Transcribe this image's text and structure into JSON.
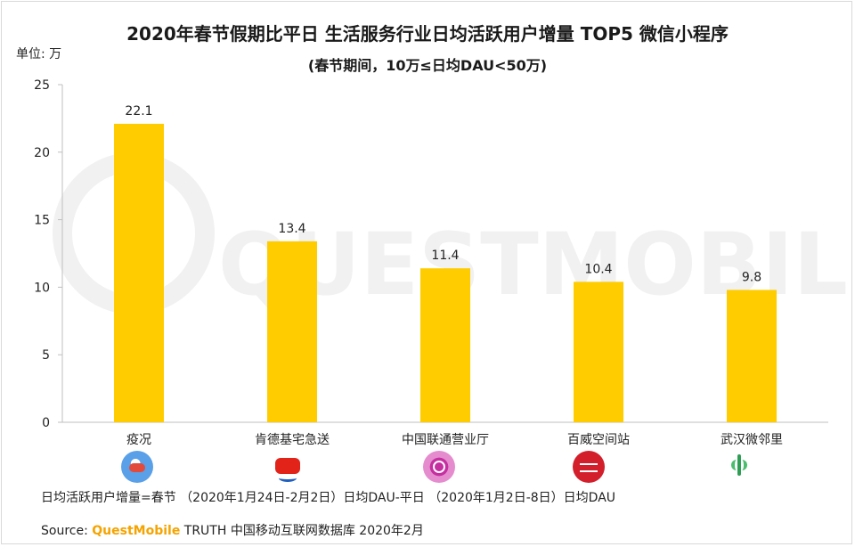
{
  "header": {
    "title": "2020年春节假期比平日 生活服务行业日均活跃用户增量 TOP5 微信小程序",
    "subtitle": "(春节期间，10万≤日均DAU<50万)",
    "unit": "单位: 万"
  },
  "chart_data": {
    "type": "bar",
    "title": "2020年春节假期比平日 生活服务行业日均活跃用户增量 TOP5 微信小程序",
    "subtitle": "(春节期间，10万≤日均DAU<50万)",
    "ylabel": "单位: 万",
    "categories": [
      "疫况",
      "肯德基宅急送",
      "中国联通营业厅",
      "百威空间站",
      "武汉微邻里"
    ],
    "values": [
      22.1,
      13.4,
      11.4,
      10.4,
      9.8
    ],
    "value_labels": [
      "22.1",
      "13.4",
      "11.4",
      "10.4",
      "9.8"
    ],
    "ylim": [
      0,
      25
    ],
    "yticks": [
      0,
      5,
      10,
      15,
      20,
      25
    ],
    "grid": false,
    "legend": "none",
    "bar_color": "#ffcc00"
  },
  "icons": [
    "epidemic-app-icon",
    "kfc-app-icon",
    "unicom-app-icon",
    "budweiser-app-icon",
    "wuhan-neighbor-app-icon"
  ],
  "watermark": "QUESTMOBILE",
  "footer": {
    "note": "日均活跃用户增量=春节 （2020年1月24日-2月2日）日均DAU-平日 （2020年1月2日-8日）日均DAU",
    "source_prefix": "Source:",
    "source_brand": "QuestMobile",
    "source_rest": "TRUTH 中国移动互联网数据库 2020年2月"
  }
}
